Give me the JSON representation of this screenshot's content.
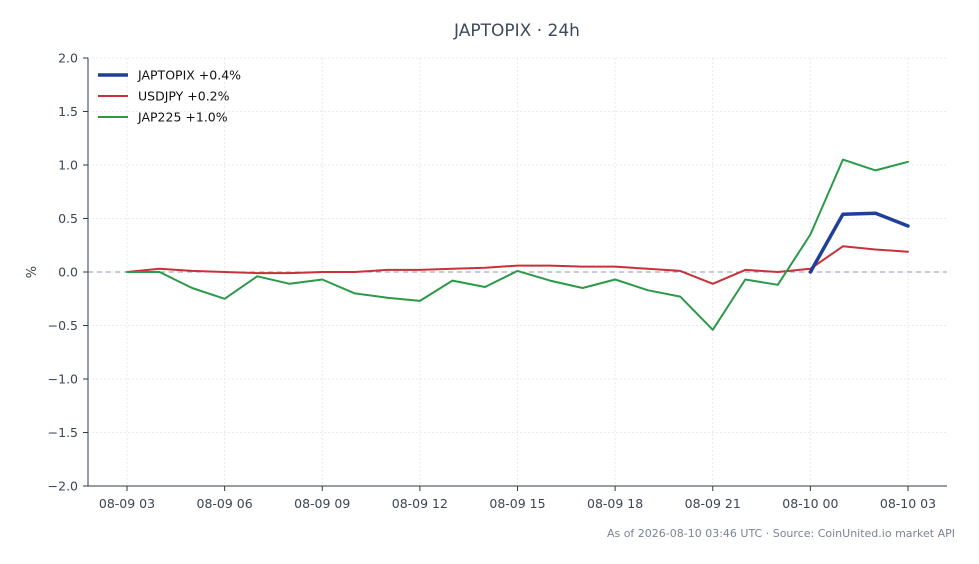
{
  "chart_data": {
    "type": "line",
    "title": "JAPTOPIX · 24h",
    "xlabel": "",
    "ylabel": "%",
    "ylim": [
      -2.0,
      2.0
    ],
    "x_hours": [
      0,
      1,
      2,
      3,
      4,
      5,
      6,
      7,
      8,
      9,
      10,
      11,
      12,
      13,
      14,
      15,
      16,
      17,
      18,
      19,
      20,
      21,
      22,
      23,
      24
    ],
    "x_ticks": [
      {
        "h": 0,
        "label": "08-09 03"
      },
      {
        "h": 3,
        "label": "08-09 06"
      },
      {
        "h": 6,
        "label": "08-09 09"
      },
      {
        "h": 9,
        "label": "08-09 12"
      },
      {
        "h": 12,
        "label": "08-09 15"
      },
      {
        "h": 15,
        "label": "08-09 18"
      },
      {
        "h": 18,
        "label": "08-09 21"
      },
      {
        "h": 21,
        "label": "08-10 00"
      },
      {
        "h": 24,
        "label": "08-10 03"
      }
    ],
    "y_ticks": [
      {
        "v": 2.0,
        "label": "2.0"
      },
      {
        "v": 1.5,
        "label": "1.5"
      },
      {
        "v": 1.0,
        "label": "1.0"
      },
      {
        "v": 0.5,
        "label": "0.5"
      },
      {
        "v": 0.0,
        "label": "0.0"
      },
      {
        "v": -0.5,
        "label": "−0.5"
      },
      {
        "v": -1.0,
        "label": "−1.0"
      },
      {
        "v": -1.5,
        "label": "−1.5"
      },
      {
        "v": -2.0,
        "label": "−2.0"
      }
    ],
    "grid": true,
    "legend_position": "top-left",
    "series": [
      {
        "name": "USDJPY +0.2%",
        "color": "#c8313a",
        "width": 2,
        "x": [
          0,
          1,
          2,
          3,
          4,
          5,
          6,
          7,
          8,
          9,
          10,
          11,
          12,
          13,
          14,
          15,
          16,
          17,
          18,
          19,
          20,
          21,
          22,
          23,
          24
        ],
        "y": [
          0.0,
          0.03,
          0.01,
          0.0,
          -0.01,
          -0.01,
          0.0,
          0.0,
          0.02,
          0.02,
          0.03,
          0.04,
          0.06,
          0.06,
          0.05,
          0.05,
          0.03,
          0.01,
          -0.11,
          0.02,
          0.0,
          0.03,
          0.24,
          0.21,
          0.19
        ]
      },
      {
        "name": "JAP225 +1.0%",
        "color": "#2a9a48",
        "width": 2,
        "x": [
          0,
          1,
          2,
          3,
          4,
          5,
          6,
          7,
          8,
          9,
          10,
          11,
          12,
          13,
          14,
          15,
          16,
          17,
          18,
          19,
          20,
          21,
          22,
          23,
          24
        ],
        "y": [
          0.0,
          0.0,
          -0.15,
          -0.25,
          -0.04,
          -0.11,
          -0.07,
          -0.2,
          -0.24,
          -0.27,
          -0.08,
          -0.14,
          0.01,
          -0.08,
          -0.15,
          -0.07,
          -0.17,
          -0.23,
          -0.54,
          -0.07,
          -0.12,
          0.35,
          1.05,
          0.95,
          1.03
        ]
      },
      {
        "name": "JAPTOPIX +0.4%",
        "color": "#1f3f9c",
        "width": 3.5,
        "x": [
          21,
          22,
          23,
          24
        ],
        "y": [
          0.0,
          0.54,
          0.55,
          0.43
        ]
      }
    ],
    "legend_order": [
      2,
      0,
      1
    ]
  },
  "footer": "As of 2026-08-10 03:46 UTC · Source: CoinUnited.io market API"
}
